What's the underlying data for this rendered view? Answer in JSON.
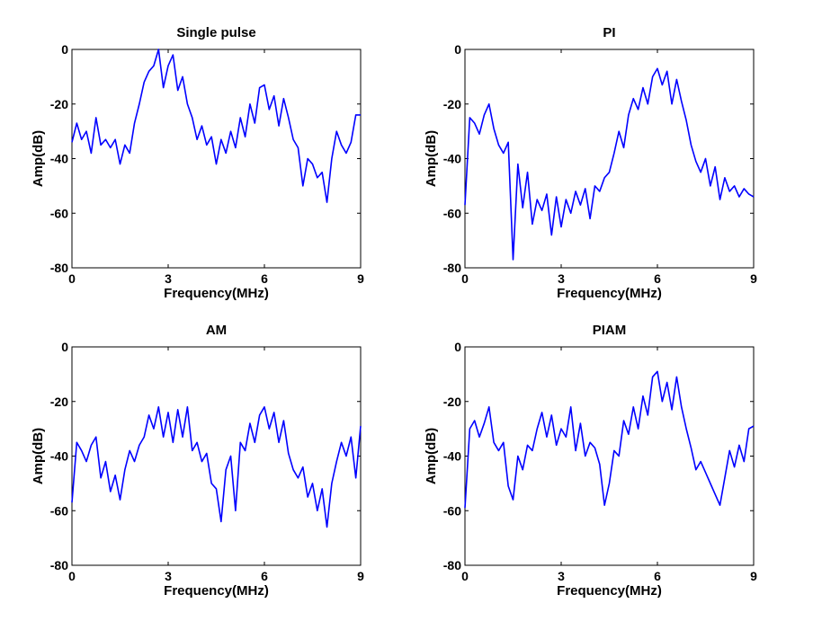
{
  "chart_data": [
    {
      "type": "line",
      "title": "Single pulse",
      "xlabel": "Frequency(MHz)",
      "ylabel": "Amp(dB)",
      "color": "#0000ff",
      "xlim": [
        0,
        9
      ],
      "ylim": [
        -80,
        0
      ],
      "xticks": [
        0,
        3,
        6,
        9
      ],
      "yticks": [
        -80,
        -60,
        -40,
        -20,
        0
      ],
      "x": [
        0,
        0.15,
        0.3,
        0.45,
        0.6,
        0.75,
        0.9,
        1.05,
        1.2,
        1.35,
        1.5,
        1.65,
        1.8,
        1.95,
        2.1,
        2.25,
        2.4,
        2.55,
        2.7,
        2.85,
        3,
        3.15,
        3.3,
        3.45,
        3.6,
        3.75,
        3.9,
        4.05,
        4.2,
        4.35,
        4.5,
        4.65,
        4.8,
        4.95,
        5.1,
        5.25,
        5.4,
        5.55,
        5.7,
        5.85,
        6,
        6.15,
        6.3,
        6.45,
        6.6,
        6.75,
        6.9,
        7.05,
        7.2,
        7.35,
        7.5,
        7.65,
        7.8,
        7.95,
        8.1,
        8.25,
        8.4,
        8.55,
        8.7,
        8.85,
        9
      ],
      "values": [
        -34,
        -27,
        -33,
        -30,
        -38,
        -25,
        -35,
        -33,
        -36,
        -33,
        -42,
        -35,
        -38,
        -27,
        -20,
        -12,
        -8,
        -6,
        0,
        -14,
        -6,
        -2,
        -15,
        -10,
        -20,
        -25,
        -33,
        -28,
        -35,
        -32,
        -42,
        -33,
        -38,
        -30,
        -36,
        -25,
        -32,
        -20,
        -27,
        -14,
        -13,
        -22,
        -17,
        -28,
        -18,
        -25,
        -33,
        -36,
        -50,
        -40,
        -42,
        -47,
        -45,
        -56,
        -40,
        -30,
        -35,
        -38,
        -34,
        -24,
        -24
      ]
    },
    {
      "type": "line",
      "title": "PI",
      "xlabel": "Frequency(MHz)",
      "ylabel": "Amp(dB)",
      "color": "#0000ff",
      "xlim": [
        0,
        9
      ],
      "ylim": [
        -80,
        0
      ],
      "xticks": [
        0,
        3,
        6,
        9
      ],
      "yticks": [
        -80,
        -60,
        -40,
        -20,
        0
      ],
      "x": [
        0,
        0.15,
        0.3,
        0.45,
        0.6,
        0.75,
        0.9,
        1.05,
        1.2,
        1.35,
        1.5,
        1.65,
        1.8,
        1.95,
        2.1,
        2.25,
        2.4,
        2.55,
        2.7,
        2.85,
        3,
        3.15,
        3.3,
        3.45,
        3.6,
        3.75,
        3.9,
        4.05,
        4.2,
        4.35,
        4.5,
        4.65,
        4.8,
        4.95,
        5.1,
        5.25,
        5.4,
        5.55,
        5.7,
        5.85,
        6,
        6.15,
        6.3,
        6.45,
        6.6,
        6.75,
        6.9,
        7.05,
        7.2,
        7.35,
        7.5,
        7.65,
        7.8,
        7.95,
        8.1,
        8.25,
        8.4,
        8.55,
        8.7,
        8.85,
        9
      ],
      "values": [
        -57,
        -25,
        -27,
        -31,
        -24,
        -20,
        -29,
        -35,
        -38,
        -34,
        -77,
        -42,
        -58,
        -45,
        -64,
        -55,
        -59,
        -53,
        -68,
        -54,
        -65,
        -55,
        -60,
        -52,
        -57,
        -51,
        -62,
        -50,
        -52,
        -47,
        -45,
        -38,
        -30,
        -36,
        -24,
        -18,
        -22,
        -14,
        -20,
        -10,
        -7,
        -13,
        -8,
        -20,
        -11,
        -19,
        -26,
        -35,
        -41,
        -45,
        -40,
        -50,
        -43,
        -55,
        -47,
        -52,
        -50,
        -54,
        -51,
        -53,
        -54
      ]
    },
    {
      "type": "line",
      "title": "AM",
      "xlabel": "Frequency(MHz)",
      "ylabel": "Amp(dB)",
      "color": "#0000ff",
      "xlim": [
        0,
        9
      ],
      "ylim": [
        -80,
        0
      ],
      "xticks": [
        0,
        3,
        6,
        9
      ],
      "yticks": [
        -80,
        -60,
        -40,
        -20,
        0
      ],
      "x": [
        0,
        0.15,
        0.3,
        0.45,
        0.6,
        0.75,
        0.9,
        1.05,
        1.2,
        1.35,
        1.5,
        1.65,
        1.8,
        1.95,
        2.1,
        2.25,
        2.4,
        2.55,
        2.7,
        2.85,
        3,
        3.15,
        3.3,
        3.45,
        3.6,
        3.75,
        3.9,
        4.05,
        4.2,
        4.35,
        4.5,
        4.65,
        4.8,
        4.95,
        5.1,
        5.25,
        5.4,
        5.55,
        5.7,
        5.85,
        6,
        6.15,
        6.3,
        6.45,
        6.6,
        6.75,
        6.9,
        7.05,
        7.2,
        7.35,
        7.5,
        7.65,
        7.8,
        7.95,
        8.1,
        8.25,
        8.4,
        8.55,
        8.7,
        8.85,
        9
      ],
      "values": [
        -57,
        -35,
        -38,
        -42,
        -36,
        -33,
        -48,
        -42,
        -53,
        -47,
        -56,
        -45,
        -38,
        -42,
        -36,
        -33,
        -25,
        -30,
        -22,
        -33,
        -24,
        -35,
        -23,
        -33,
        -22,
        -38,
        -35,
        -42,
        -39,
        -50,
        -52,
        -64,
        -45,
        -40,
        -60,
        -35,
        -38,
        -28,
        -35,
        -25,
        -22,
        -30,
        -24,
        -35,
        -27,
        -39,
        -45,
        -48,
        -44,
        -55,
        -50,
        -60,
        -52,
        -66,
        -50,
        -42,
        -35,
        -40,
        -33,
        -48,
        -29
      ]
    },
    {
      "type": "line",
      "title": "PIAM",
      "xlabel": "Frequency(MHz)",
      "ylabel": "Amp(dB)",
      "color": "#0000ff",
      "xlim": [
        0,
        9
      ],
      "ylim": [
        -80,
        0
      ],
      "xticks": [
        0,
        3,
        6,
        9
      ],
      "yticks": [
        -80,
        -60,
        -40,
        -20,
        0
      ],
      "x": [
        0,
        0.15,
        0.3,
        0.45,
        0.6,
        0.75,
        0.9,
        1.05,
        1.2,
        1.35,
        1.5,
        1.65,
        1.8,
        1.95,
        2.1,
        2.25,
        2.4,
        2.55,
        2.7,
        2.85,
        3,
        3.15,
        3.3,
        3.45,
        3.6,
        3.75,
        3.9,
        4.05,
        4.2,
        4.35,
        4.5,
        4.65,
        4.8,
        4.95,
        5.1,
        5.25,
        5.4,
        5.55,
        5.7,
        5.85,
        6,
        6.15,
        6.3,
        6.45,
        6.6,
        6.75,
        6.9,
        7.05,
        7.2,
        7.35,
        7.5,
        7.65,
        7.8,
        7.95,
        8.1,
        8.25,
        8.4,
        8.55,
        8.7,
        8.85,
        9
      ],
      "values": [
        -59,
        -30,
        -27,
        -33,
        -28,
        -22,
        -35,
        -38,
        -35,
        -51,
        -56,
        -40,
        -45,
        -36,
        -38,
        -30,
        -24,
        -33,
        -25,
        -36,
        -30,
        -33,
        -22,
        -38,
        -28,
        -40,
        -35,
        -37,
        -43,
        -58,
        -50,
        -38,
        -40,
        -27,
        -32,
        -22,
        -30,
        -18,
        -25,
        -11,
        -9,
        -20,
        -13,
        -23,
        -11,
        -22,
        -30,
        -37,
        -45,
        -42,
        -46,
        -50,
        -54,
        -58,
        -48,
        -38,
        -44,
        -36,
        -42,
        -30,
        -29
      ]
    }
  ]
}
